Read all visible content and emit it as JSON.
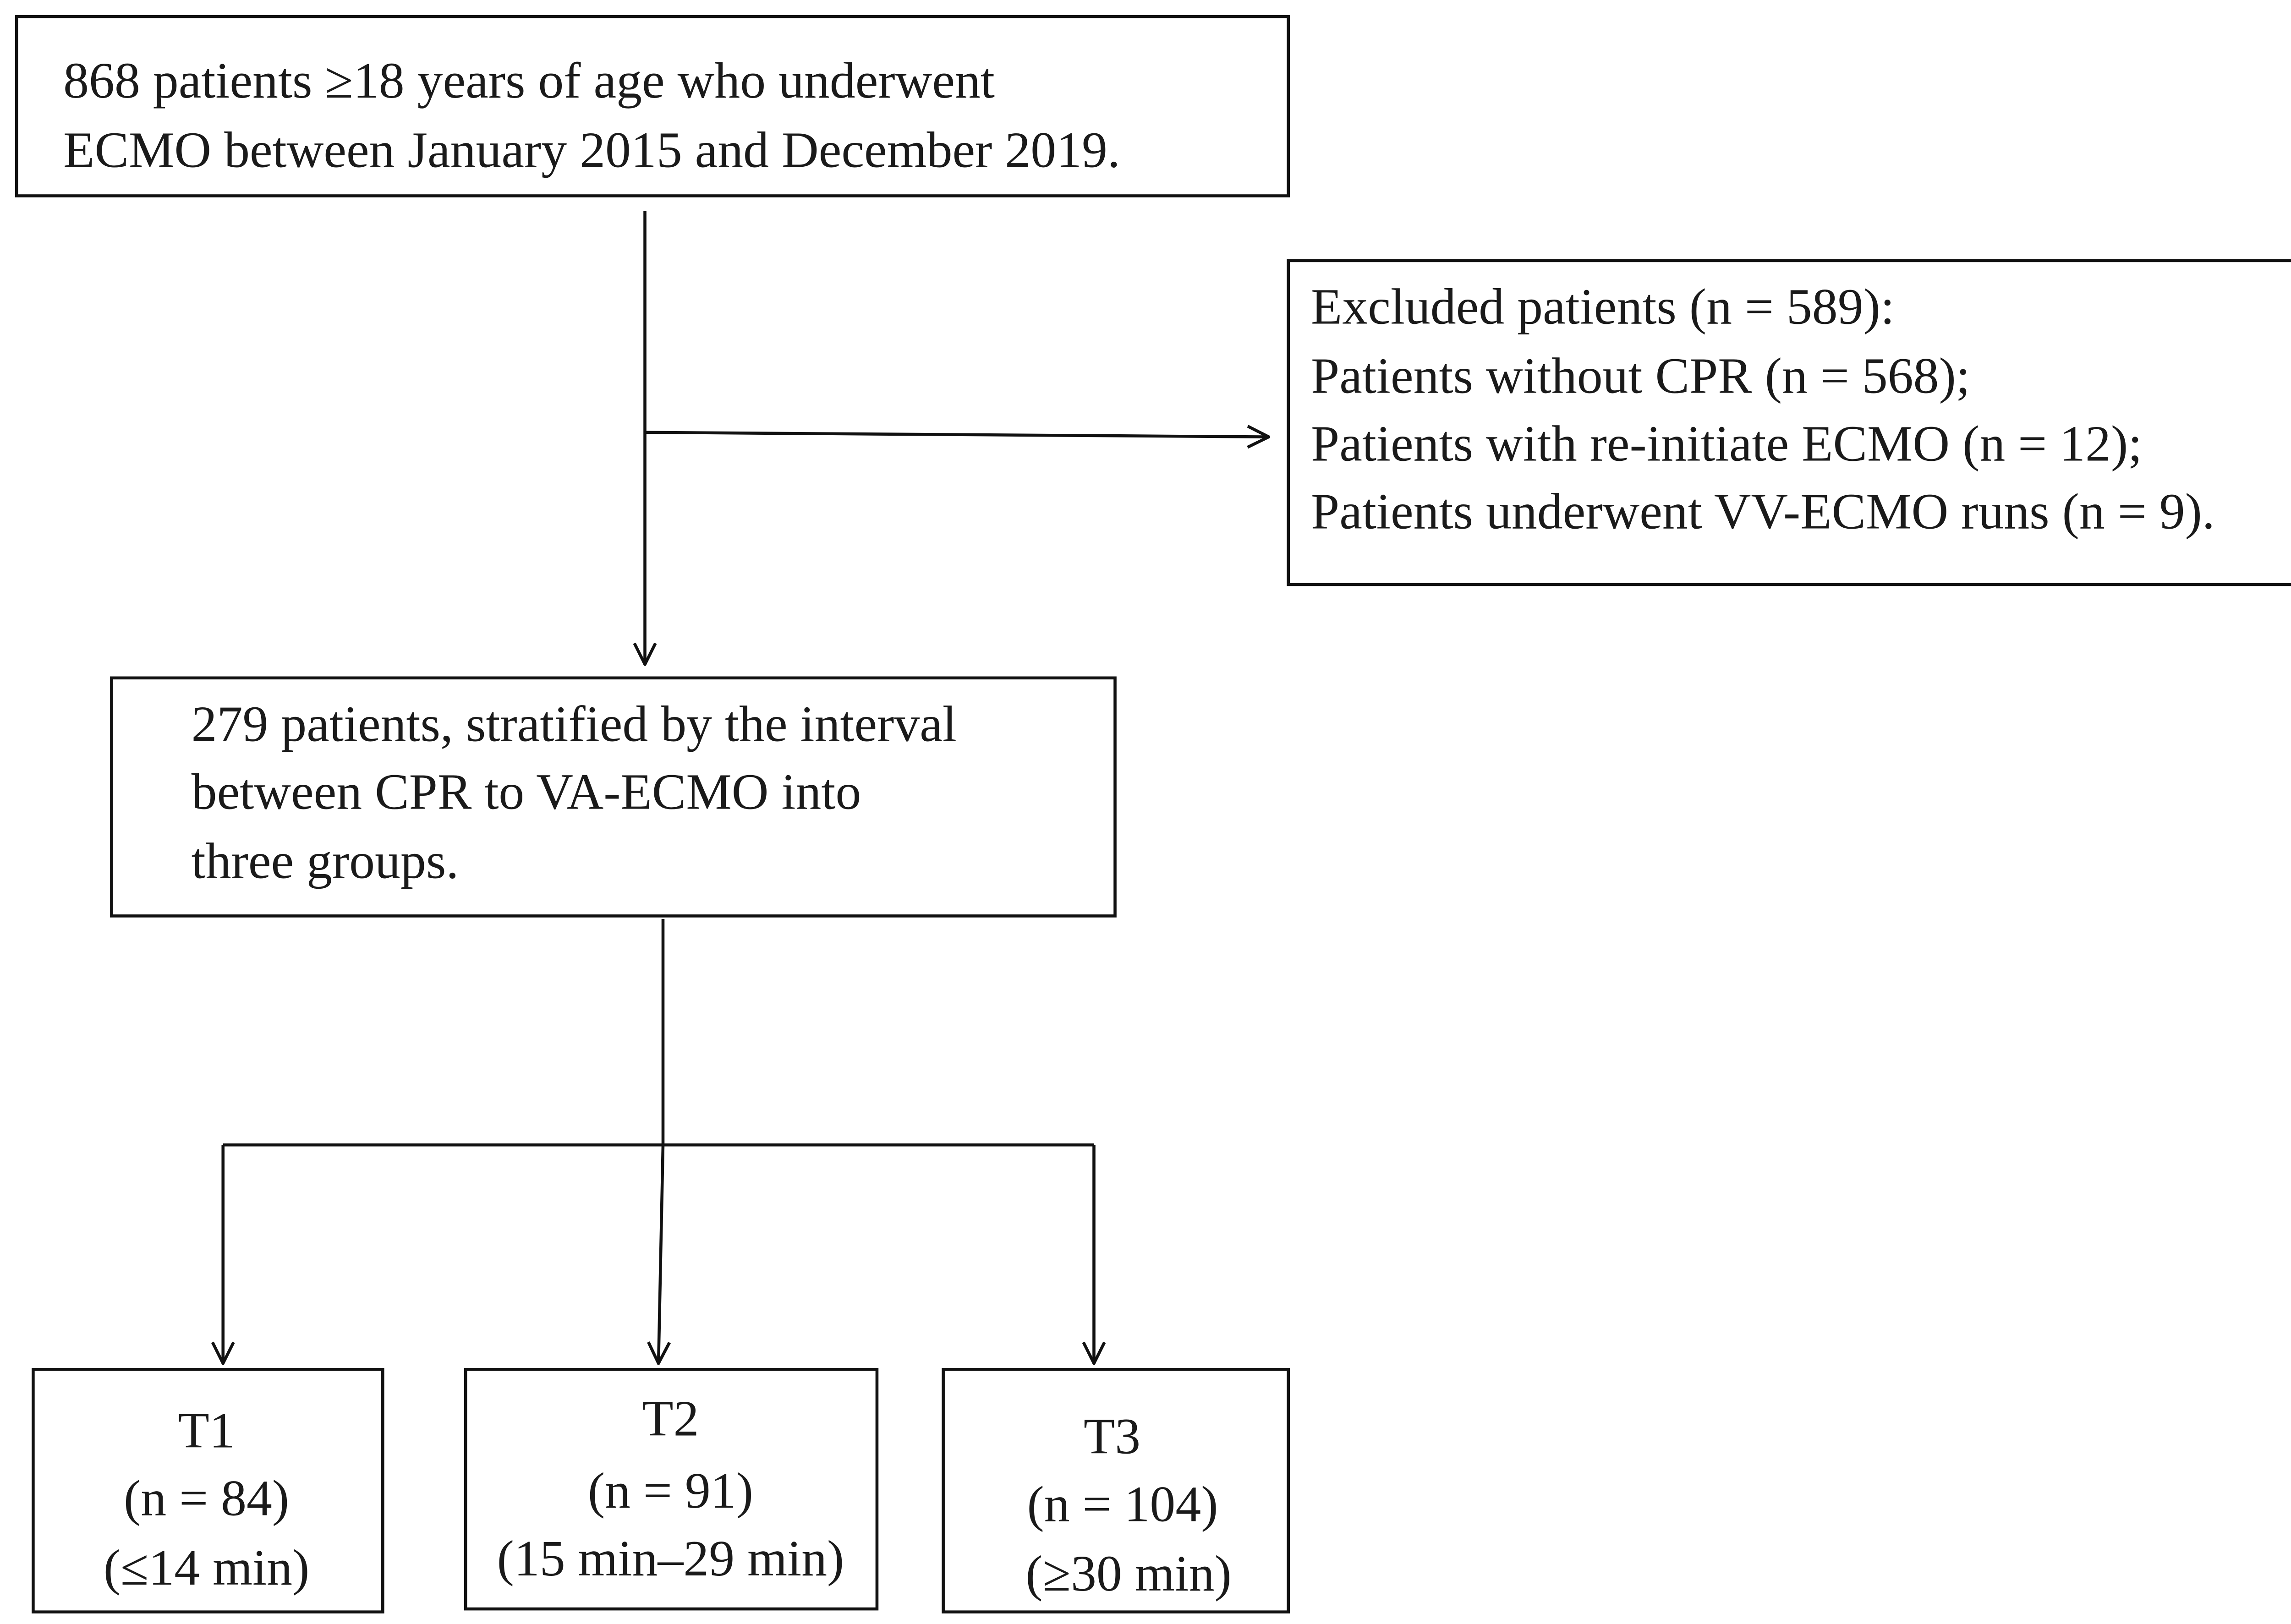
{
  "nodes": [
    {
      "lines": [
        "868 patients ≥18 years of age who underwent",
        "ECMO between January 2015 and December 2019."
      ]
    },
    {
      "lines": [
        "Excluded patients (n = 589):",
        "Patients without CPR (n = 568);",
        "Patients with re-initiate ECMO (n = 12);",
        "Patients underwent VV-ECMO runs (n = 9)."
      ]
    },
    {
      "lines": [
        "279 patients, stratified by the interval",
        "between CPR to VA-ECMO into",
        "three groups."
      ]
    },
    {
      "lines": [
        "T1",
        "(n = 84)",
        "(≤14 min)"
      ]
    },
    {
      "lines": [
        "T2",
        "(n = 91)",
        "(15 min–29 min)"
      ]
    },
    {
      "lines": [
        "T3",
        "(n = 104)",
        "(≥30 min)"
      ]
    }
  ]
}
